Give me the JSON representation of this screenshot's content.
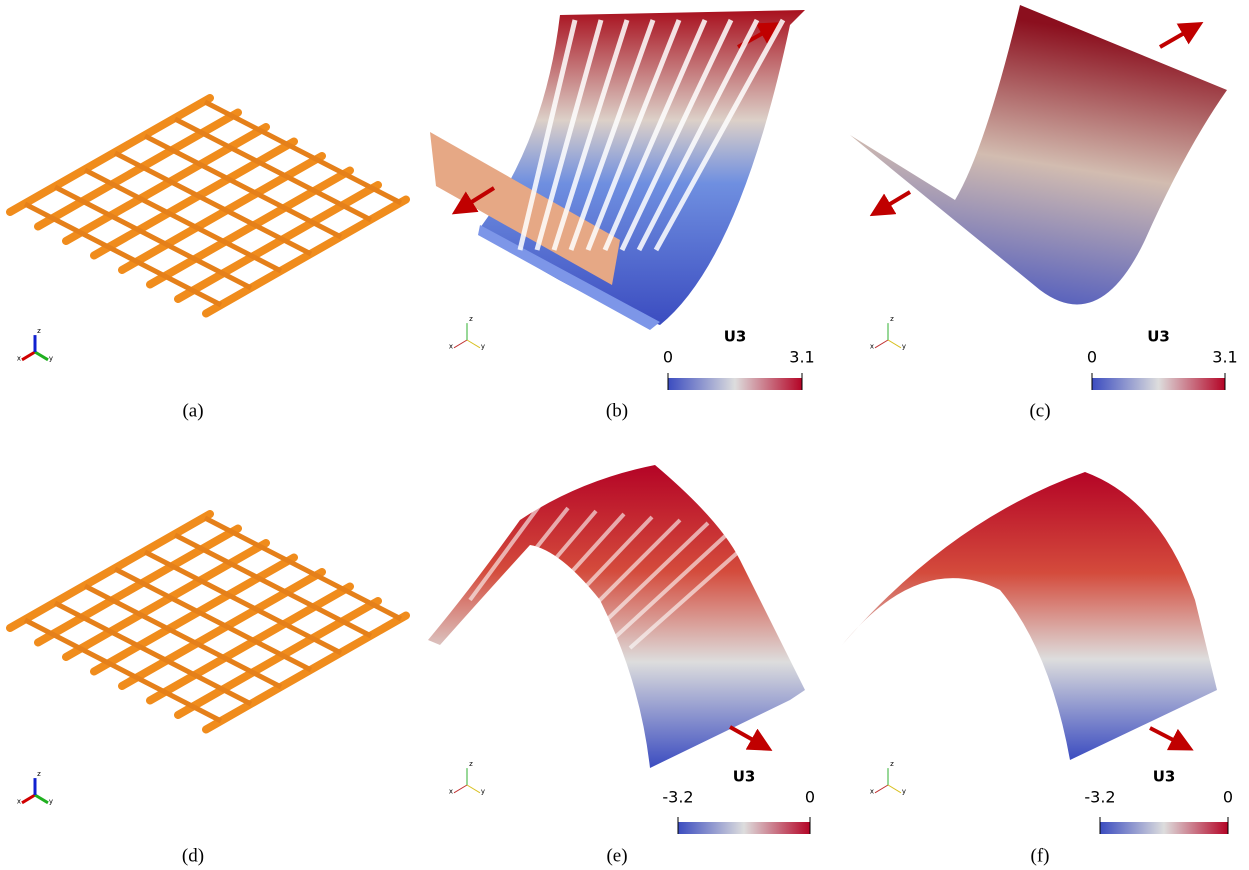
{
  "panels": [
    {
      "caption": "(a)"
    },
    {
      "caption": "(b)",
      "colorbar": {
        "title": "U3",
        "min": 0,
        "max": 3.1
      }
    },
    {
      "caption": "(c)",
      "colorbar": {
        "title": "U3",
        "min": 0,
        "max": 3.1
      }
    },
    {
      "caption": "(d)"
    },
    {
      "caption": "(e)",
      "colorbar": {
        "title": "U3",
        "min": -3.2,
        "max": 0
      }
    },
    {
      "caption": "(f)",
      "colorbar": {
        "title": "U3",
        "min": -3.2,
        "max": 0
      }
    }
  ],
  "triad_labels": [
    "x",
    "y",
    "z"
  ]
}
